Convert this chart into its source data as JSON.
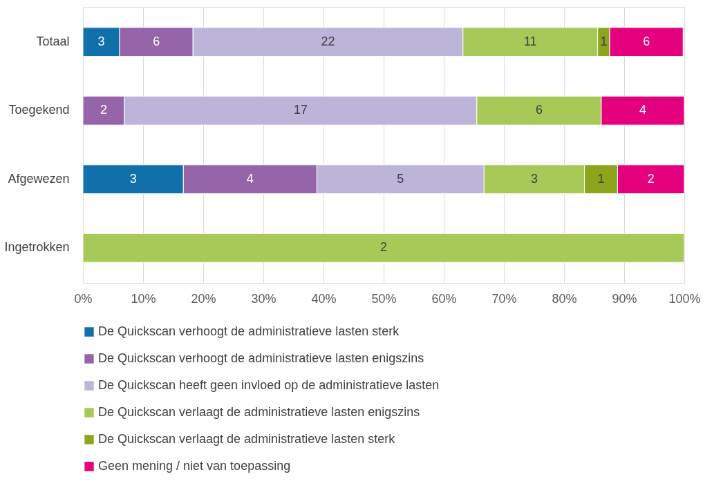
{
  "chart_data": {
    "type": "bar",
    "orientation": "horizontal",
    "stacked": true,
    "categories": [
      "Totaal",
      "Toegekend",
      "Afgewezen",
      "Ingetrokken"
    ],
    "series": [
      {
        "name": "De Quickscan verhoogt de administratieve lasten sterk",
        "color": "#1170aa",
        "values": [
          6.1,
          null,
          16.7,
          null
        ]
      },
      {
        "name": "De Quickscan verhoogt de administratieve lasten enigszins",
        "color": "#9564a9",
        "values": [
          12.2,
          6.9,
          22.2,
          null
        ]
      },
      {
        "name": "De Quickscan heeft geen invloed op de administratieve lasten",
        "color": "#bdb4da",
        "values": [
          44.9,
          58.6,
          27.8,
          null
        ]
      },
      {
        "name": "De Quickscan verlaagt de administratieve lasten enigszins",
        "color": "#a6c957",
        "values": [
          22.4,
          20.7,
          16.7,
          100
        ]
      },
      {
        "name": "De Quickscan verlaagt de administratieve lasten sterk",
        "color": "#8da51c",
        "values": [
          2.0,
          null,
          5.5,
          null
        ]
      },
      {
        "name": "Geen mening / niet van toepassing",
        "color": "#e5007d",
        "values": [
          12.2,
          13.8,
          11.1,
          null
        ]
      }
    ],
    "annotations": [
      "3",
      "6",
      "22",
      "11",
      "1",
      "6",
      "2",
      "17",
      "6",
      "4",
      "3",
      "4",
      "5",
      "3",
      "1",
      "2",
      "2"
    ],
    "xlim": [
      0,
      100
    ],
    "xticks": [
      {
        "value": 0,
        "label": "0%"
      },
      {
        "value": 10,
        "label": "10%"
      },
      {
        "value": 20,
        "label": "20%"
      },
      {
        "value": 30,
        "label": "30%"
      },
      {
        "value": 40,
        "label": "40%"
      },
      {
        "value": 50,
        "label": "50%"
      },
      {
        "value": 60,
        "label": "60%"
      },
      {
        "value": 70,
        "label": "70%"
      },
      {
        "value": 80,
        "label": "80%"
      },
      {
        "value": 90,
        "label": "90%"
      },
      {
        "value": 100,
        "label": "100%"
      }
    ],
    "grid": "x",
    "legend": "bottom"
  }
}
